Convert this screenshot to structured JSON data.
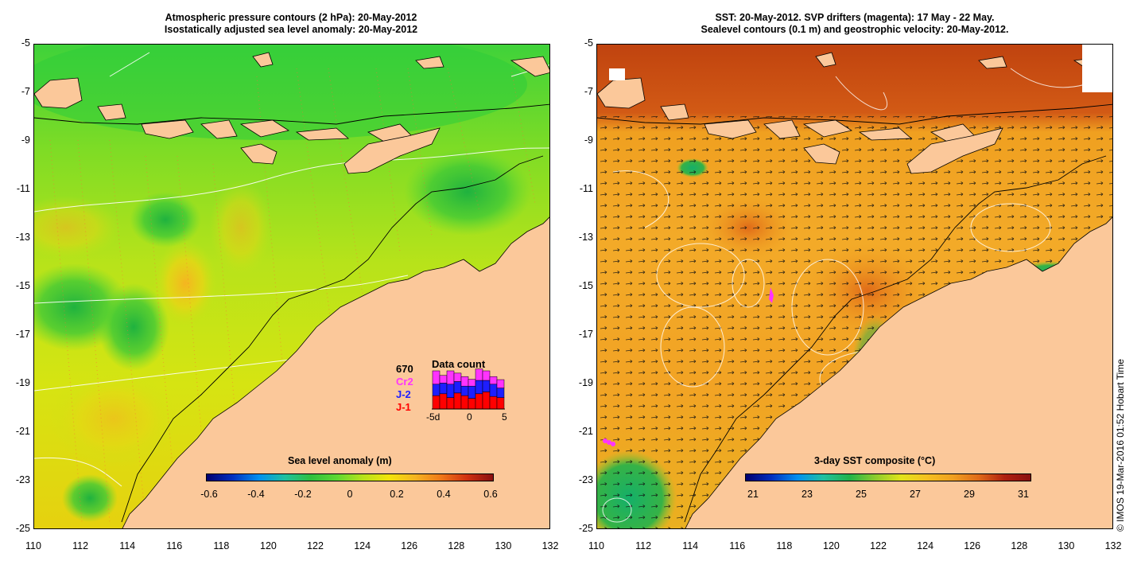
{
  "left_panel": {
    "title_line1": "Atmospheric pressure contours (2 hPa): 20-May-2012",
    "title_line2": "Isostatically adjusted sea level anomaly: 20-May-2012",
    "y_ticks": [
      "-5",
      "-7",
      "-9",
      "-11",
      "-13",
      "-15",
      "-17",
      "-19",
      "-21",
      "-23",
      "-25"
    ],
    "x_ticks": [
      "110",
      "112",
      "114",
      "116",
      "118",
      "120",
      "122",
      "124",
      "126",
      "128",
      "130",
      "132"
    ],
    "colorbar": {
      "title": "Sea level anomaly (m)",
      "labels": [
        "-0.6",
        "-0.4",
        "-0.2",
        "0",
        "0.2",
        "0.4",
        "0.6"
      ]
    },
    "data_count": {
      "total": "670",
      "title": "Data count",
      "sat1": "Cr2",
      "sat2": "J-2",
      "sat3": "J-1",
      "x_start": "-5d",
      "x_mid": "0",
      "x_end": "5",
      "colors": {
        "cr2": "#ff33ff",
        "j2": "#1e1eff",
        "j1": "#ff0000"
      },
      "bars": [
        {
          "j1": 0.35,
          "j2": 0.3,
          "cr2": 0.35
        },
        {
          "j1": 0.4,
          "j2": 0.28,
          "cr2": 0.2
        },
        {
          "j1": 0.3,
          "j2": 0.35,
          "cr2": 0.35
        },
        {
          "j1": 0.42,
          "j2": 0.3,
          "cr2": 0.22
        },
        {
          "j1": 0.35,
          "j2": 0.25,
          "cr2": 0.25
        },
        {
          "j1": 0.28,
          "j2": 0.32,
          "cr2": 0.18
        },
        {
          "j1": 0.4,
          "j2": 0.35,
          "cr2": 0.3
        },
        {
          "j1": 0.45,
          "j2": 0.3,
          "cr2": 0.25
        },
        {
          "j1": 0.33,
          "j2": 0.32,
          "cr2": 0.2
        },
        {
          "j1": 0.3,
          "j2": 0.25,
          "cr2": 0.22
        }
      ]
    }
  },
  "right_panel": {
    "title_line1": "SST: 20-May-2012. SVP drifters (magenta): 17 May - 22 May.",
    "title_line2": "Sealevel contours (0.1 m) and geostrophic velocity: 20-May-2012.",
    "y_ticks": [
      "-5",
      "-7",
      "-9",
      "-11",
      "-13",
      "-15",
      "-17",
      "-19",
      "-21",
      "-23",
      "-25"
    ],
    "x_ticks": [
      "110",
      "112",
      "114",
      "116",
      "118",
      "120",
      "122",
      "124",
      "126",
      "128",
      "130",
      "132"
    ],
    "colorbar": {
      "title": "3-day SST composite (°C)",
      "labels": [
        "21",
        "23",
        "25",
        "27",
        "29",
        "31"
      ]
    }
  },
  "credit": "© IMOS 19-Mar-2016 01:52 Hobart Time",
  "colors": {
    "land": "#fbc89a",
    "sla_green": "#5ed833",
    "sla_lime": "#9be21a",
    "sla_yellow": "#e4e60d",
    "sla_orange": "#f5b520",
    "sst_orange": "#f09a27",
    "sst_red": "#c0430f",
    "sst_green": "#22b34a"
  }
}
